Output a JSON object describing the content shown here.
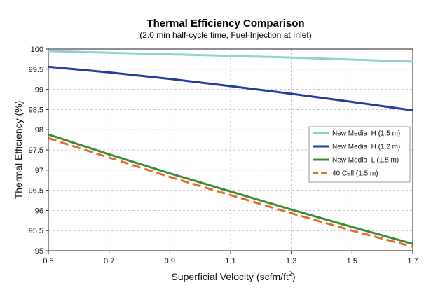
{
  "chart_data": {
    "type": "line",
    "title": "Thermal Efficiency Comparison",
    "subtitle": "(2.0 min half-cycle time, Fuel-Injection at Inlet)",
    "xlabel": "Superficial Velocity (scfm/ft",
    "xlabel_sup": "2",
    "xlabel_end": ")",
    "ylabel": "Thermal Efficiency (%)",
    "xlim": [
      0.5,
      1.7
    ],
    "ylim": [
      95,
      100
    ],
    "x_ticks": [
      0.5,
      0.7,
      0.9,
      1.1,
      1.3,
      1.5,
      1.7
    ],
    "x_tick_labels": [
      "0.5",
      "0.7",
      "0.9",
      "1.1",
      "1.3",
      "1.5",
      "1.7"
    ],
    "y_ticks": [
      95,
      95.5,
      96,
      96.5,
      97,
      97.5,
      98,
      98.5,
      99,
      99.5,
      100
    ],
    "y_tick_labels": [
      "95",
      "95.5",
      "96",
      "96.5",
      "97",
      "97.5",
      "98",
      "98.5",
      "99",
      "99.5",
      "100"
    ],
    "grid": "dashed",
    "legend_position": "right",
    "series": [
      {
        "name": "New Media  H (1.5 m)",
        "color": "#8fd3d0",
        "dash": false,
        "x": [
          0.5,
          0.7,
          0.9,
          1.1,
          1.3,
          1.5,
          1.7
        ],
        "y": [
          99.95,
          99.91,
          99.87,
          99.83,
          99.79,
          99.74,
          99.69
        ]
      },
      {
        "name": "New Media  H (1.2 m)",
        "color": "#1f3f9a",
        "dash": false,
        "x": [
          0.5,
          0.7,
          0.9,
          1.1,
          1.3,
          1.5,
          1.7
        ],
        "y": [
          99.56,
          99.42,
          99.26,
          99.08,
          98.89,
          98.69,
          98.48
        ]
      },
      {
        "name": "New Media  L (1.5 m)",
        "color": "#3d8b37",
        "dash": false,
        "x": [
          0.5,
          0.7,
          0.9,
          1.1,
          1.3,
          1.5,
          1.7
        ],
        "y": [
          97.88,
          97.39,
          96.92,
          96.47,
          96.02,
          95.59,
          95.17
        ]
      },
      {
        "name": "40 Cell (1.5 m)",
        "color": "#e8692c",
        "dash": true,
        "x": [
          0.5,
          0.7,
          0.9,
          1.1,
          1.3,
          1.5,
          1.7
        ],
        "y": [
          97.79,
          97.31,
          96.83,
          96.38,
          95.93,
          95.5,
          95.1
        ]
      }
    ]
  }
}
